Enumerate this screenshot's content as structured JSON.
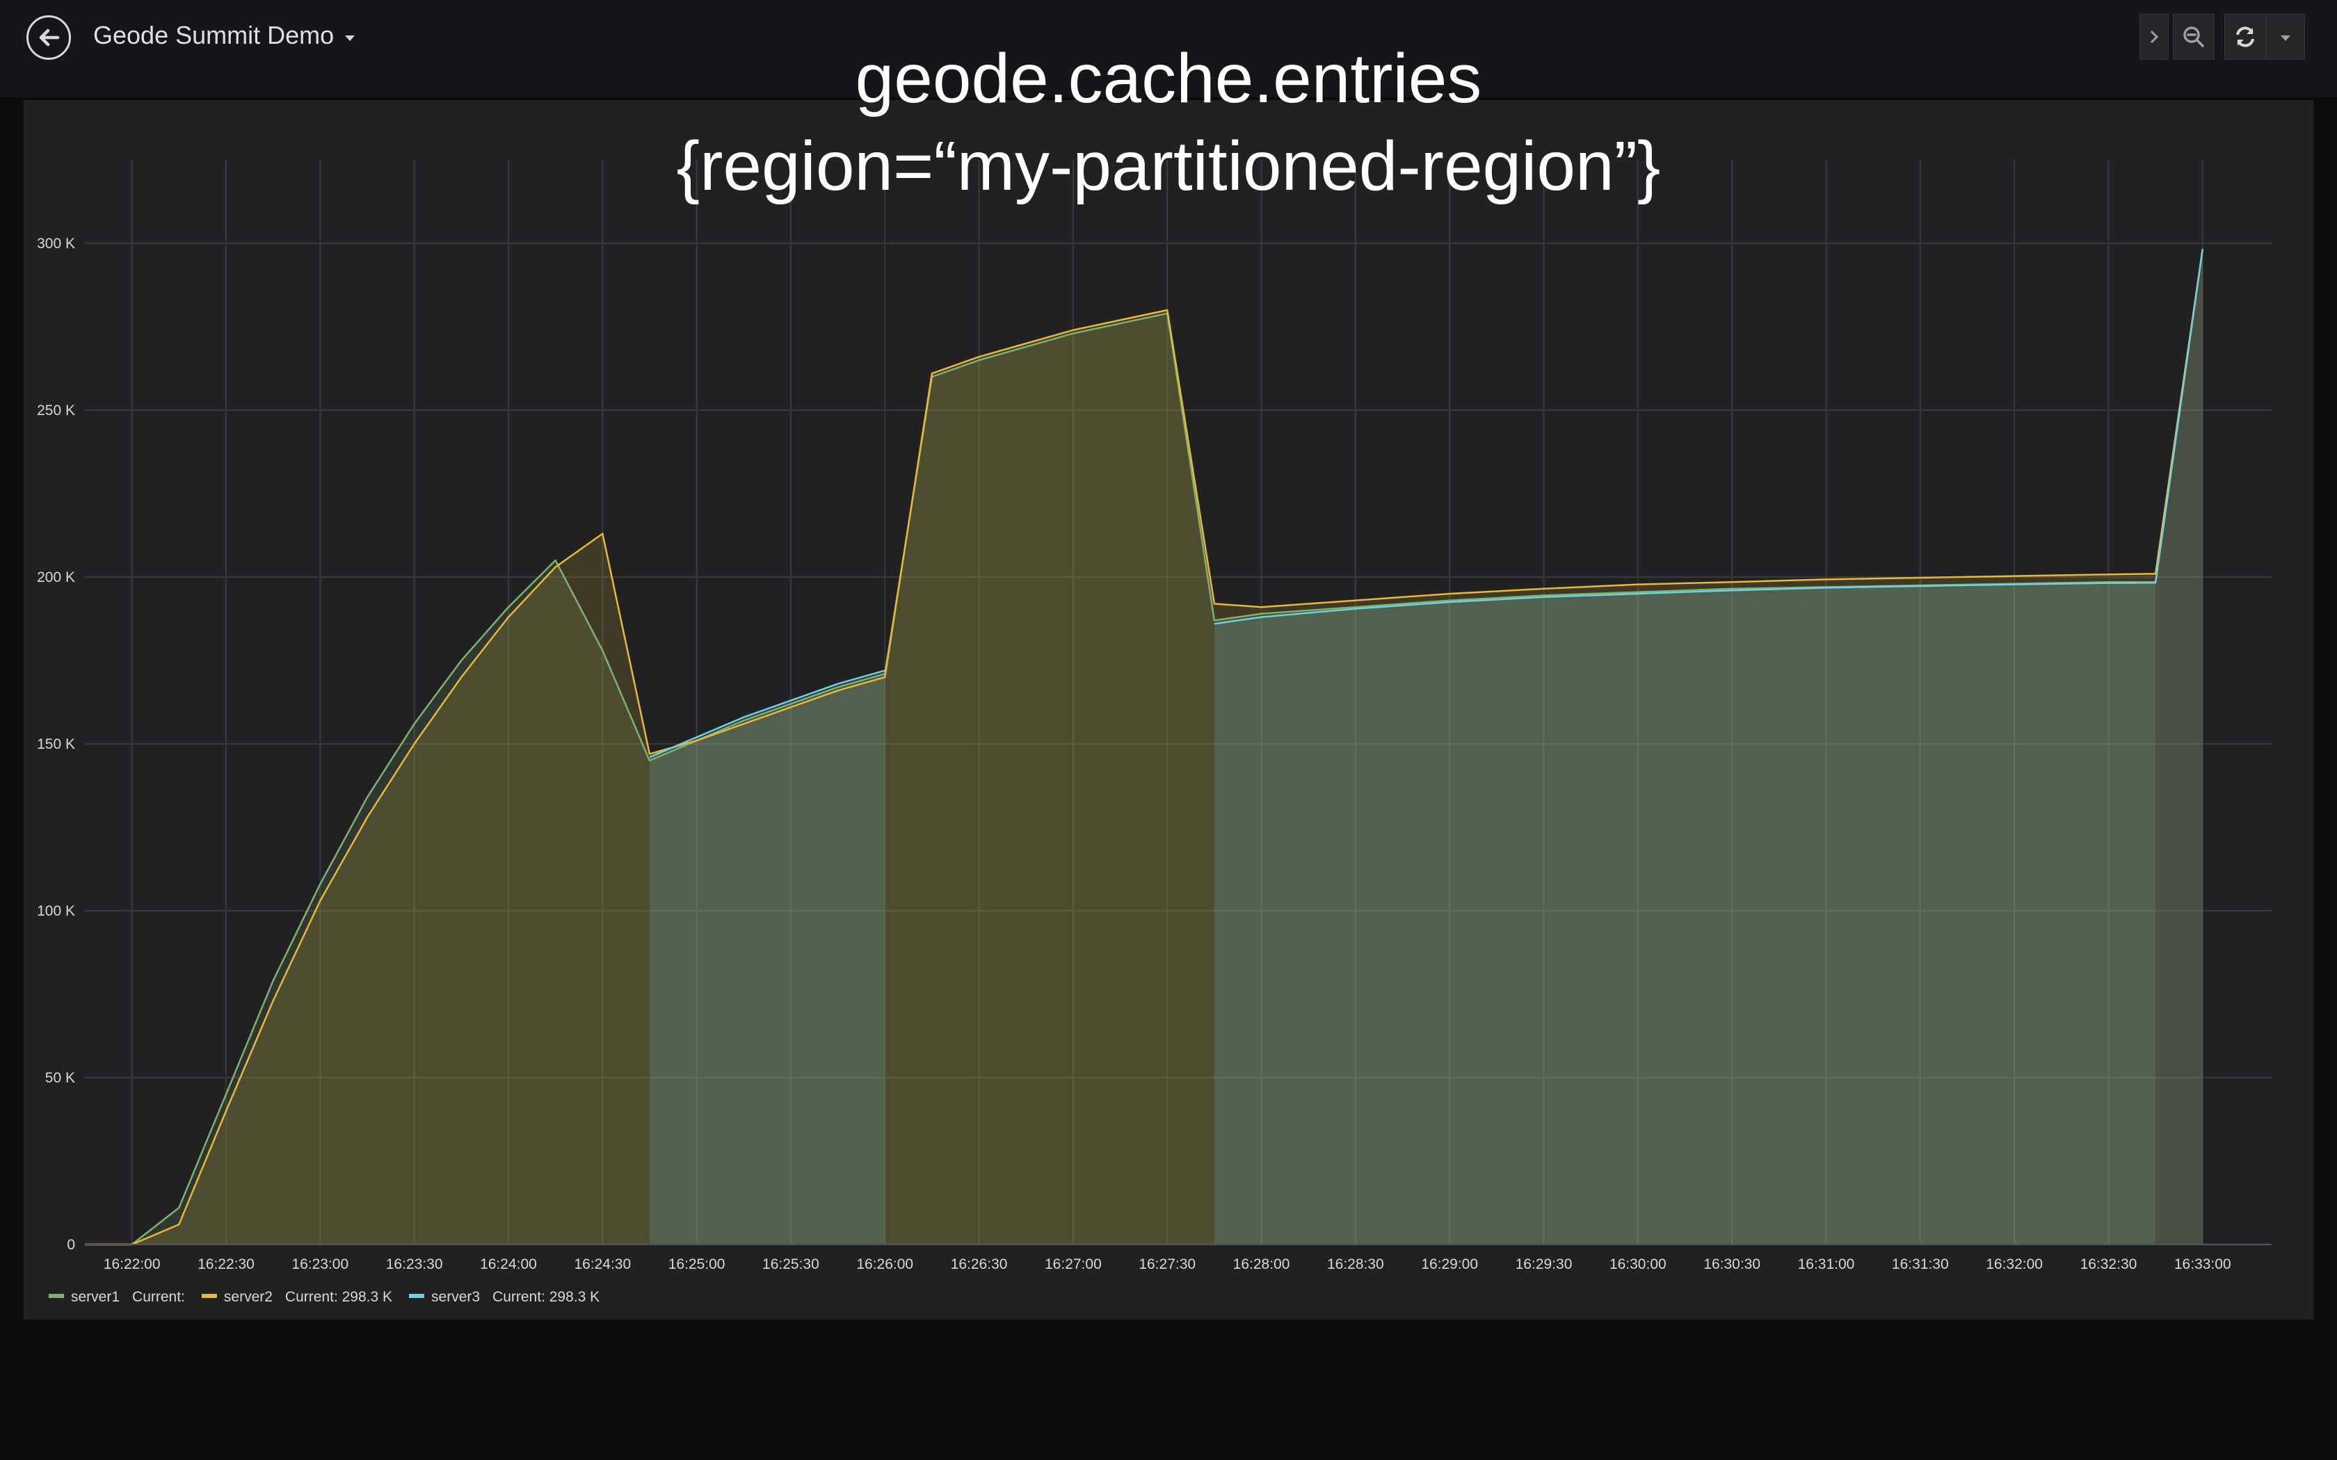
{
  "header": {
    "dashboard_title": "Geode Summit Demo",
    "icons": {
      "back": "back-arrow-icon",
      "caret": "caret-down-icon",
      "forward": "chevron-right-icon",
      "zoom": "zoom-out-icon",
      "refresh": "refresh-icon",
      "refresh_menu": "caret-down-icon"
    }
  },
  "chart_data": {
    "type": "area",
    "title_line1": "geode.cache.entries",
    "title_line2": "{region=“my-partitioned-region”}",
    "xlabel": "",
    "ylabel": "",
    "ylim": [
      0,
      325000
    ],
    "y_ticks": [
      0,
      50000,
      100000,
      150000,
      200000,
      250000,
      300000
    ],
    "y_tick_labels": [
      "0",
      "50 K",
      "100 K",
      "150 K",
      "200 K",
      "250 K",
      "300 K"
    ],
    "x_tick_labels": [
      "16:22:00",
      "16:22:30",
      "16:23:00",
      "16:23:30",
      "16:24:00",
      "16:24:30",
      "16:25:00",
      "16:25:30",
      "16:26:00",
      "16:26:30",
      "16:27:00",
      "16:27:30",
      "16:28:00",
      "16:28:30",
      "16:29:00",
      "16:29:30",
      "16:30:00",
      "16:30:30",
      "16:31:00",
      "16:31:30",
      "16:32:00",
      "16:32:30",
      "16:33:00"
    ],
    "x_tick_seconds": [
      0,
      30,
      60,
      90,
      120,
      150,
      180,
      210,
      240,
      270,
      300,
      330,
      360,
      390,
      420,
      450,
      480,
      510,
      540,
      570,
      600,
      630,
      660
    ],
    "xlim_seconds": [
      -15,
      682
    ],
    "grid": true,
    "legend_placement": "bottom-left",
    "series": [
      {
        "name": "server1",
        "legend_current": "Current:",
        "color": "#7eb26d",
        "x": [
          -15,
          0,
          15,
          30,
          45,
          60,
          75,
          90,
          105,
          120,
          135,
          150,
          165,
          180,
          195,
          210,
          225,
          240,
          255,
          270,
          285,
          300,
          315,
          330,
          345,
          360,
          390,
          420,
          450,
          480,
          510,
          540,
          570,
          600,
          630,
          645,
          660
        ],
        "y": [
          0,
          0,
          11000,
          45000,
          79000,
          108000,
          134000,
          156000,
          175000,
          191000,
          205000,
          178000,
          145000,
          151000,
          157000,
          162000,
          167000,
          171000,
          260000,
          265000,
          269000,
          273000,
          276000,
          279000,
          187000,
          189000,
          191000,
          193000,
          194500,
          195500,
          196500,
          197000,
          197500,
          198000,
          198500,
          198500,
          null
        ]
      },
      {
        "name": "server2",
        "legend_current": "Current: 298.3 K",
        "color": "#eab839",
        "x": [
          -15,
          0,
          15,
          30,
          45,
          60,
          75,
          90,
          105,
          120,
          135,
          150,
          165,
          180,
          195,
          210,
          225,
          240,
          255,
          270,
          285,
          300,
          315,
          330,
          345,
          360,
          390,
          420,
          450,
          480,
          510,
          540,
          570,
          600,
          630,
          645,
          660
        ],
        "y": [
          0,
          0,
          6000,
          40000,
          73000,
          103000,
          128000,
          150000,
          170000,
          188000,
          203000,
          213000,
          147000,
          151000,
          156000,
          161000,
          166000,
          170000,
          261000,
          266000,
          270000,
          274000,
          277000,
          280000,
          192000,
          191000,
          193000,
          195000,
          196500,
          197800,
          198500,
          199300,
          199800,
          200300,
          200800,
          201000,
          298300
        ]
      },
      {
        "name": "server3",
        "legend_current": "Current: 298.3 K",
        "color": "#6ed0e0",
        "x": [
          -15,
          0,
          15,
          30,
          45,
          60,
          75,
          90,
          105,
          120,
          135,
          150,
          165,
          180,
          195,
          210,
          225,
          240,
          255,
          270,
          285,
          300,
          315,
          330,
          345,
          360,
          390,
          420,
          450,
          480,
          510,
          540,
          570,
          600,
          630,
          645,
          660
        ],
        "y": [
          null,
          null,
          null,
          null,
          null,
          null,
          null,
          null,
          null,
          null,
          null,
          null,
          146000,
          152000,
          158000,
          163000,
          168000,
          172000,
          null,
          null,
          null,
          null,
          null,
          null,
          186000,
          188000,
          190500,
          192500,
          194000,
          195000,
          196000,
          196800,
          197300,
          197800,
          198200,
          198300,
          298300
        ]
      }
    ]
  }
}
